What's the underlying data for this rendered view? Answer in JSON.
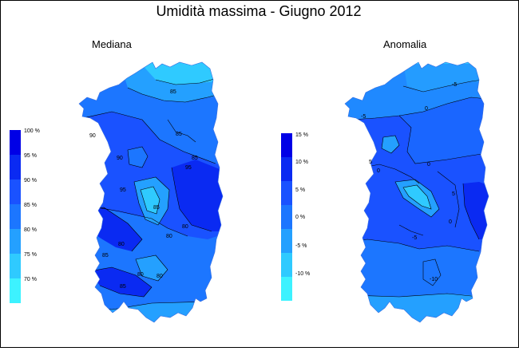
{
  "title": "Umidità massima - Giugno 2012",
  "panels": [
    {
      "subtitle": "Mediana",
      "legend": {
        "colors": [
          "#0000e6",
          "#0a2af2",
          "#1a52ff",
          "#1c76ff",
          "#24a0ff",
          "#2fcaff",
          "#3df2ff"
        ],
        "labels": [
          "100 %",
          "95 %",
          "90 %",
          "85 %",
          "80 %",
          "75 %",
          "70 %"
        ]
      },
      "contour_labels": [
        "85",
        "90",
        "85",
        "90",
        "85",
        "95",
        "95",
        "85",
        "80",
        "80",
        "80",
        "85",
        "80",
        "80",
        "85"
      ]
    },
    {
      "subtitle": "Anomalia",
      "legend": {
        "colors": [
          "#0000e6",
          "#0a2af2",
          "#1a52ff",
          "#1c76ff",
          "#24a0ff",
          "#2fcaff",
          "#3df2ff"
        ],
        "labels": [
          "15 %",
          "10 %",
          "5 %",
          "0 %",
          "-5 %",
          "-10 %"
        ]
      },
      "contour_labels": [
        "-5",
        "0",
        "-5",
        "0",
        "5",
        "0",
        "5",
        "0",
        "-10",
        "-5"
      ]
    }
  ]
}
